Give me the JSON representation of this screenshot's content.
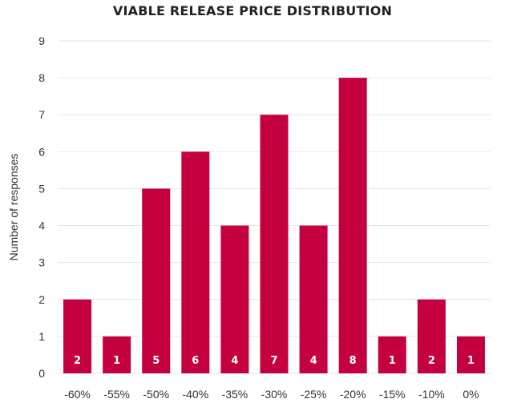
{
  "chart_data": {
    "type": "bar",
    "title": "VIABLE RELEASE PRICE DISTRIBUTION",
    "xlabel": "",
    "ylabel": "Number of responses",
    "categories": [
      "-60%",
      "-55%",
      "-50%",
      "-40%",
      "-35%",
      "-30%",
      "-25%",
      "-20%",
      "-15%",
      "-10%",
      "0%"
    ],
    "values": [
      2,
      1,
      5,
      6,
      4,
      7,
      4,
      8,
      1,
      2,
      1
    ],
    "ylim": [
      0,
      9
    ],
    "yticks": [
      0,
      1,
      2,
      3,
      4,
      5,
      6,
      7,
      8,
      9
    ],
    "grid": true,
    "legend": "none",
    "bar_color": "#C4003F",
    "grid_color": "#E6E6E6"
  }
}
